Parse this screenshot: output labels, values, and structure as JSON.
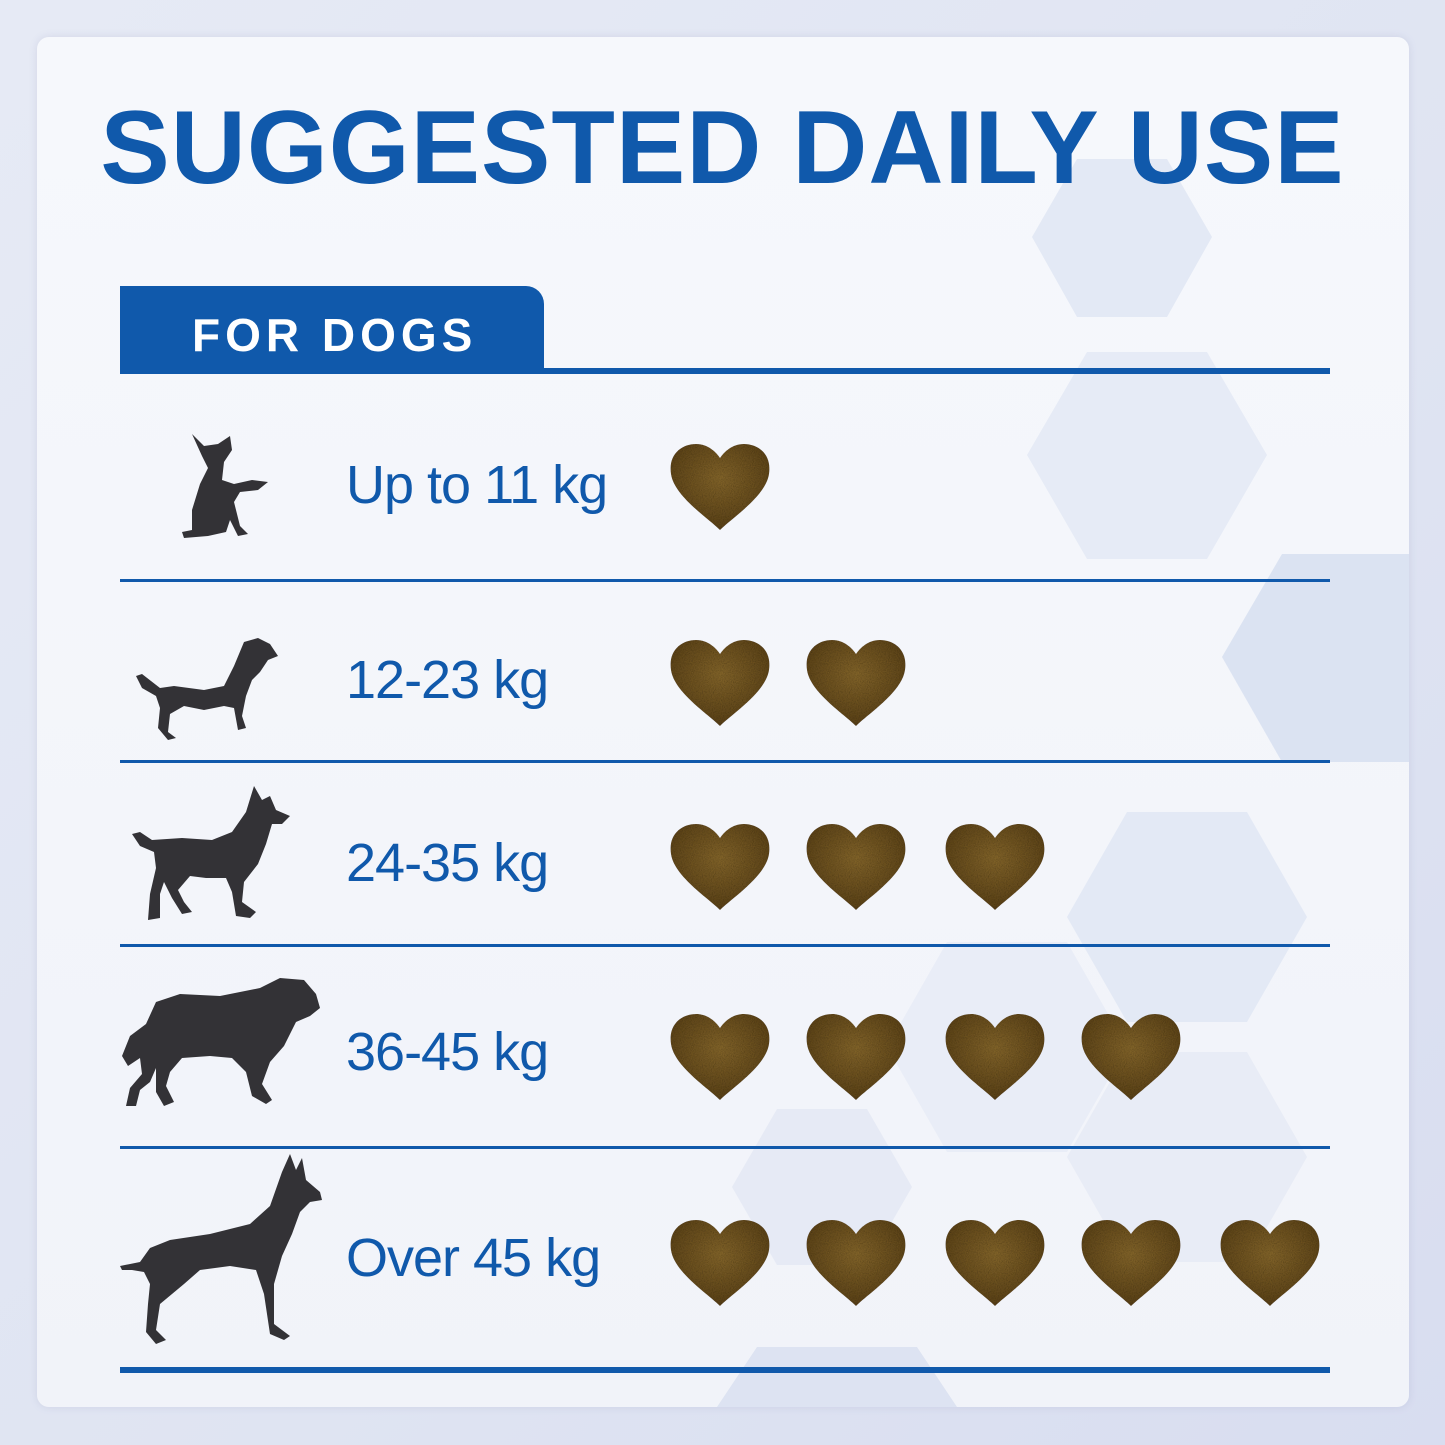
{
  "title": "SUGGESTED DAILY USE",
  "tab_label": "FOR DOGS",
  "colors": {
    "brand_blue": "#1059ab",
    "silhouette": "#333236",
    "chew": "#7a5a22"
  },
  "rows": [
    {
      "label": "Up to 11 kg",
      "chews": 1,
      "dog_icon": "small-dog-sitting-icon"
    },
    {
      "label": "12-23 kg",
      "chews": 2,
      "dog_icon": "medium-dog-icon"
    },
    {
      "label": "24-35 kg",
      "chews": 3,
      "dog_icon": "shepherd-dog-icon"
    },
    {
      "label": "36-45 kg",
      "chews": 4,
      "dog_icon": "large-dog-icon"
    },
    {
      "label": "Over 45 kg",
      "chews": 5,
      "dog_icon": "great-dane-icon"
    }
  ]
}
